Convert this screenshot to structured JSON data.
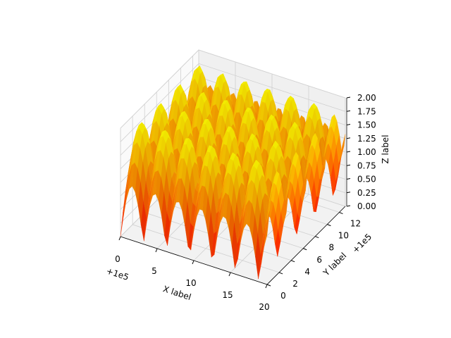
{
  "chart_data": {
    "type": "surface",
    "title": "",
    "xlabel": "X label",
    "ylabel": "Y label",
    "zlabel": "Z label",
    "x_offset_text": "+1e5",
    "y_offset_text": "+1e5",
    "xlim": [
      0,
      20
    ],
    "ylim": [
      0,
      13
    ],
    "zlim": [
      0,
      2
    ],
    "xticks": [
      "0",
      "5",
      "10",
      "15",
      "20"
    ],
    "yticks": [
      "0",
      "2",
      "4",
      "6",
      "8",
      "10",
      "12"
    ],
    "zticks": [
      "0.00",
      "0.25",
      "0.50",
      "0.75",
      "1.00",
      "1.25",
      "1.50",
      "1.75",
      "2.00"
    ],
    "colormap": "autumn",
    "colormap_colors": [
      "#ff0000",
      "#ffff00"
    ],
    "grid": true,
    "pane_color": "#f2f2f2"
  }
}
